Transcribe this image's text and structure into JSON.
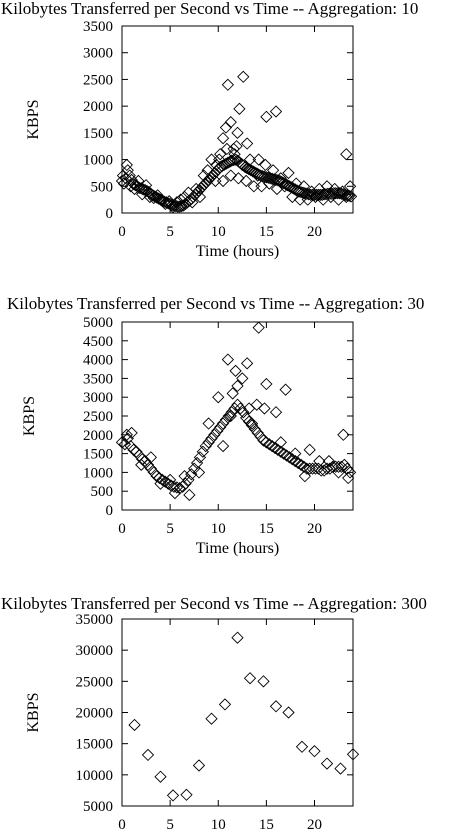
{
  "chart_data": [
    {
      "type": "scatter",
      "title": "Kilobytes Transferred per Second vs Time -- Aggregation:  10",
      "xlabel": "Time (hours)",
      "ylabel": "KBPS",
      "xlim": [
        0,
        24
      ],
      "ylim": [
        0,
        3500
      ],
      "xticks": [
        0,
        5,
        10,
        15,
        20
      ],
      "yticks": [
        0,
        500,
        1000,
        1500,
        2000,
        2500,
        3000,
        3500
      ],
      "marker": "diamond",
      "series": [
        {
          "x": [
            0.0,
            0.2,
            0.4,
            0.6,
            0.8,
            1.0,
            1.2,
            1.4,
            1.6,
            1.8,
            2.0,
            2.2,
            2.4,
            2.6,
            2.8,
            3.0,
            3.2,
            3.4,
            3.6,
            3.8,
            4.0,
            4.2,
            4.4,
            4.6,
            4.8,
            5.0,
            5.2,
            5.4,
            5.6,
            5.8,
            6.0,
            6.2,
            6.4,
            6.6,
            6.8,
            7.0,
            7.2,
            7.4,
            7.6,
            7.8,
            8.0,
            8.2,
            8.4,
            8.6,
            8.8,
            9.0,
            9.2,
            9.4,
            9.6,
            9.8,
            10.0,
            10.2,
            10.4,
            10.6,
            10.8,
            11.0,
            11.2,
            11.4,
            11.6,
            11.8,
            12.0,
            12.2,
            12.4,
            12.6,
            12.8,
            13.0,
            13.2,
            13.4,
            13.6,
            13.8,
            14.0,
            14.2,
            14.4,
            14.6,
            14.8,
            15.0,
            15.2,
            15.4,
            15.6,
            15.8,
            16.0,
            16.2,
            16.4,
            16.6,
            16.8,
            17.0,
            17.2,
            17.4,
            17.6,
            17.8,
            18.0,
            18.2,
            18.4,
            18.6,
            18.8,
            19.0,
            19.2,
            19.4,
            19.6,
            19.8,
            20.0,
            20.2,
            20.4,
            20.6,
            20.8,
            21.0,
            21.2,
            21.4,
            21.6,
            21.8,
            22.0,
            22.2,
            22.4,
            22.6,
            22.8,
            23.0,
            23.2,
            23.4,
            23.6,
            23.8,
            0.1,
            0.5,
            0.9,
            1.3,
            1.7,
            2.1,
            2.5,
            2.9,
            3.3,
            3.7,
            4.1,
            4.5,
            4.9,
            5.3,
            5.7,
            6.1,
            6.5,
            6.9,
            7.3,
            7.7,
            8.1,
            8.5,
            8.9,
            9.3,
            9.7,
            10.1,
            10.5,
            10.9,
            11.3,
            11.7,
            12.1,
            12.5,
            12.9,
            13.3,
            13.7,
            14.1,
            14.5,
            14.9,
            15.3,
            15.7,
            16.1,
            16.5,
            16.9,
            17.3,
            17.7,
            18.1,
            18.5,
            18.9,
            19.3,
            19.7,
            20.1,
            20.5,
            20.9,
            21.3,
            21.7,
            22.1,
            22.5,
            22.9,
            23.3,
            23.7,
            11.3,
            12.0,
            13.0,
            14.2,
            10.8,
            11.0,
            10.5,
            12.6,
            12.2,
            15.0,
            16.0,
            11.6,
            11.9,
            23.3,
            10.2,
            9.8
          ],
          "y": [
            600,
            550,
            650,
            800,
            700,
            620,
            540,
            520,
            500,
            470,
            460,
            440,
            430,
            410,
            390,
            360,
            330,
            310,
            290,
            270,
            250,
            230,
            210,
            200,
            180,
            170,
            150,
            140,
            130,
            120,
            120,
            130,
            140,
            170,
            200,
            230,
            260,
            300,
            340,
            380,
            420,
            460,
            500,
            540,
            580,
            620,
            660,
            700,
            740,
            780,
            820,
            860,
            880,
            900,
            920,
            940,
            960,
            980,
            990,
            1000,
            980,
            950,
            920,
            890,
            860,
            840,
            820,
            800,
            780,
            760,
            740,
            720,
            700,
            690,
            680,
            670,
            660,
            650,
            640,
            630,
            620,
            610,
            600,
            580,
            560,
            540,
            520,
            500,
            480,
            460,
            440,
            420,
            400,
            390,
            380,
            370,
            360,
            350,
            340,
            340,
            340,
            340,
            340,
            340,
            340,
            350,
            350,
            360,
            360,
            360,
            370,
            370,
            370,
            370,
            360,
            350,
            340,
            330,
            320,
            310,
            700,
            900,
            500,
            450,
            600,
            350,
            520,
            300,
            280,
            330,
            240,
            170,
            220,
            110,
            200,
            250,
            300,
            380,
            200,
            450,
            300,
            700,
            800,
            1000,
            600,
            1000,
            600,
            1200,
            700,
            1100,
            650,
            900,
            600,
            1000,
            500,
            700,
            500,
            900,
            550,
            800,
            450,
            650,
            500,
            750,
            300,
            550,
            250,
            500,
            250,
            400,
            300,
            450,
            250,
            500,
            300,
            450,
            250,
            400,
            300,
            500,
            1700,
            1500,
            1300,
            1000,
            1600,
            2400,
            1400,
            2550,
            1950,
            1800,
            1900,
            1200,
            1250,
            1100,
            1100,
            900
          ]
        }
      ]
    },
    {
      "type": "scatter",
      "title": "Kilobytes Transferred per Second vs Time -- Aggregation:  30",
      "xlabel": "Time (hours)",
      "ylabel": "KBPS",
      "xlim": [
        0,
        24
      ],
      "ylim": [
        0,
        5000
      ],
      "xticks": [
        0,
        5,
        10,
        15,
        20
      ],
      "yticks": [
        0,
        500,
        1000,
        1500,
        2000,
        2500,
        3000,
        3500,
        4000,
        4500,
        5000
      ],
      "marker": "diamond",
      "series": [
        {
          "x": [
            0.0,
            0.3,
            0.6,
            0.9,
            1.2,
            1.5,
            1.8,
            2.1,
            2.4,
            2.7,
            3.0,
            3.3,
            3.6,
            3.9,
            4.2,
            4.5,
            4.8,
            5.1,
            5.4,
            5.7,
            6.0,
            6.3,
            6.6,
            6.9,
            7.2,
            7.5,
            7.8,
            8.1,
            8.4,
            8.7,
            9.0,
            9.3,
            9.6,
            9.9,
            10.2,
            10.5,
            10.8,
            11.1,
            11.4,
            11.7,
            12.0,
            12.3,
            12.6,
            12.9,
            13.2,
            13.5,
            13.8,
            14.1,
            14.4,
            14.7,
            15.0,
            15.3,
            15.6,
            15.9,
            16.2,
            16.5,
            16.8,
            17.1,
            17.4,
            17.7,
            18.0,
            18.3,
            18.6,
            18.9,
            19.2,
            19.5,
            19.8,
            20.1,
            20.4,
            20.7,
            21.0,
            21.3,
            21.6,
            21.9,
            22.2,
            22.5,
            22.8,
            23.1,
            23.4,
            23.7,
            0.5,
            1.0,
            2.0,
            3.0,
            4.0,
            5.0,
            5.5,
            6.5,
            7.0,
            8.0,
            9.0,
            10.0,
            11.0,
            11.3,
            11.5,
            12.0,
            13.0,
            13.5,
            14.0,
            14.2,
            15.0,
            16.0,
            17.0,
            18.0,
            19.0,
            19.5,
            20.5,
            21.5,
            22.5,
            23.0,
            23.5,
            10.5,
            11.8,
            12.5,
            13.2,
            14.8,
            16.5
          ],
          "y": [
            1800,
            1750,
            1900,
            1700,
            1600,
            1550,
            1450,
            1350,
            1300,
            1200,
            1100,
            1000,
            900,
            850,
            800,
            750,
            700,
            650,
            620,
            600,
            580,
            620,
            700,
            800,
            950,
            1100,
            1250,
            1400,
            1550,
            1700,
            1800,
            1900,
            2000,
            2100,
            2200,
            2300,
            2400,
            2500,
            2600,
            2700,
            2800,
            2700,
            2600,
            2450,
            2350,
            2250,
            2150,
            2050,
            1950,
            1850,
            1800,
            1750,
            1700,
            1650,
            1600,
            1550,
            1500,
            1450,
            1400,
            1350,
            1300,
            1250,
            1200,
            1150,
            1100,
            1100,
            1100,
            1100,
            1100,
            1050,
            1050,
            1100,
            1100,
            1150,
            1150,
            1150,
            1150,
            1200,
            1100,
            1000,
            2000,
            2050,
            1200,
            1400,
            700,
            800,
            450,
            900,
            400,
            1000,
            2300,
            3000,
            4000,
            2500,
            3100,
            3300,
            3900,
            2300,
            2800,
            4850,
            3350,
            2600,
            3200,
            1500,
            900,
            1600,
            1300,
            1300,
            1000,
            2000,
            850,
            1700,
            3700,
            3500,
            2700,
            2700,
            1800
          ]
        }
      ]
    },
    {
      "type": "scatter",
      "title": "Kilobytes Transferred per Second vs Time -- Aggregation:  300",
      "xlabel": "",
      "ylabel": "KBPS",
      "xlim": [
        0,
        24
      ],
      "ylim": [
        5000,
        35000
      ],
      "xticks": [
        0,
        5,
        10,
        15,
        20
      ],
      "yticks": [
        5000,
        10000,
        15000,
        20000,
        25000,
        30000,
        35000
      ],
      "marker": "diamond",
      "series": [
        {
          "x": [
            1.3,
            2.7,
            4.0,
            5.3,
            6.7,
            8.0,
            9.3,
            10.7,
            12.0,
            13.3,
            14.7,
            16.0,
            17.3,
            18.7,
            20.0,
            21.3,
            22.7,
            24.0
          ],
          "y": [
            18000,
            13200,
            9700,
            6700,
            6800,
            11500,
            19000,
            21300,
            32000,
            25500,
            25000,
            21000,
            20000,
            14500,
            13800,
            11800,
            11000,
            13300
          ]
        }
      ]
    }
  ]
}
